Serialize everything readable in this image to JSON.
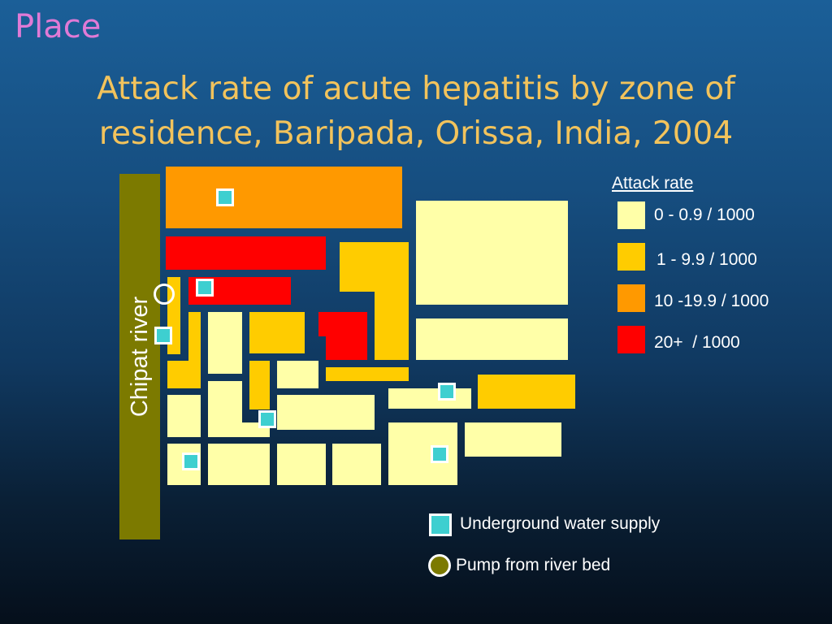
{
  "slide": {
    "section_title": "Place",
    "title_line1": "Attack rate of acute hepatitis by zone of",
    "title_line2": "residence, Baripada, Orissa, India, 2004"
  },
  "colors": {
    "rate_0_0.9": "#ffffa8",
    "rate_1_9.9": "#ffcc00",
    "rate_10_19.9": "#ff9900",
    "rate_20_plus": "#ff0000",
    "river": "#7c7a00",
    "underground_water_supply": "#3ecfd0"
  },
  "map": {
    "river_label": "Chipat river"
  },
  "legend": {
    "title": "Attack rate",
    "items": [
      {
        "label": "0 - 0.9 / 1000",
        "color": "#ffffa8"
      },
      {
        "label": "1 - 9.9 / 1000",
        "color": "#ffcc00"
      },
      {
        "label": "10 -19.9 / 1000",
        "color": "#ff9900"
      },
      {
        "label": "20+  / 1000",
        "color": "#ff0000"
      }
    ],
    "underground_label": "Underground water supply",
    "pump_label": "Pump from river bed"
  }
}
